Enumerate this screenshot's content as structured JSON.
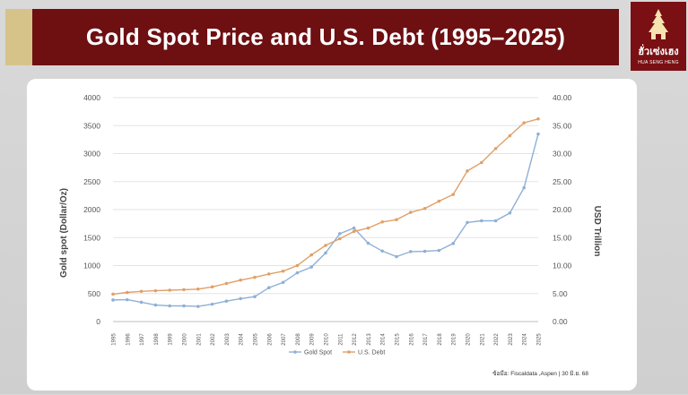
{
  "header": {
    "title": "Gold Spot Price and U.S. Debt (1995–2025)"
  },
  "logo": {
    "name": "ฮั่วเซ่งเฮง",
    "sub": "HUA SENG HENG"
  },
  "source": "ข้อมือ: Fiscaldata ,Aspen | 30 มิ.ย. 68",
  "colors": {
    "gold": "#8fb0d6",
    "debt": "#e0a068",
    "title_bg": "#6e0f12"
  },
  "chart_data": {
    "type": "line",
    "title": "",
    "xlabel": "",
    "ylabel": "Gold spot (Dollar/Oz)",
    "y2label": "USD Trillion",
    "ylim": [
      0,
      4000
    ],
    "y2lim": [
      0,
      40
    ],
    "yticks": [
      "0",
      "500",
      "1000",
      "1500",
      "2000",
      "2500",
      "3000",
      "3500",
      "4000"
    ],
    "y2ticks": [
      "0.00",
      "5.00",
      "10.00",
      "15.00",
      "20.00",
      "25.00",
      "30.00",
      "35.00",
      "40.00"
    ],
    "grid": true,
    "legend_position": "bottom",
    "categories": [
      "1995",
      "1996",
      "1997",
      "1998",
      "1999",
      "2000",
      "2001",
      "2002",
      "2003",
      "2004",
      "2005",
      "2006",
      "2007",
      "2008",
      "2009",
      "2010",
      "2011",
      "2012",
      "2013",
      "2014",
      "2015",
      "2016",
      "2017",
      "2018",
      "2019",
      "2020",
      "2021",
      "2022",
      "2023",
      "2024",
      "2025"
    ],
    "series": [
      {
        "name": "Gold Spot",
        "axis": "left",
        "values": [
          385,
          390,
          345,
          295,
          280,
          280,
          270,
          310,
          365,
          410,
          445,
          605,
          700,
          870,
          975,
          1225,
          1570,
          1670,
          1400,
          1260,
          1160,
          1250,
          1255,
          1270,
          1395,
          1770,
          1800,
          1800,
          1940,
          2390,
          3350
        ]
      },
      {
        "name": "U.S. Debt",
        "axis": "right",
        "values": [
          4.9,
          5.2,
          5.4,
          5.5,
          5.6,
          5.7,
          5.8,
          6.2,
          6.8,
          7.4,
          7.9,
          8.5,
          9.0,
          10.0,
          11.9,
          13.6,
          14.8,
          16.1,
          16.7,
          17.8,
          18.2,
          19.5,
          20.2,
          21.5,
          22.7,
          26.9,
          28.4,
          30.9,
          33.2,
          35.5,
          36.2
        ]
      }
    ]
  }
}
